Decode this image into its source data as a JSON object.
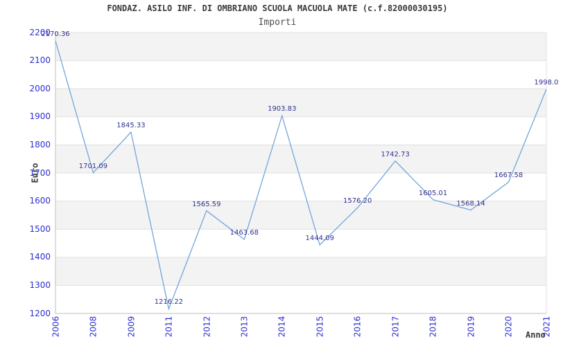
{
  "header": {
    "title": "FONDAZ. ASILO INF. DI OMBRIANO SCUOLA MACUOLA MATE (c.f.82000030195)",
    "subtitle": "Importi"
  },
  "axes": {
    "y_label": "Euro",
    "x_label": "Anno"
  },
  "chart_data": {
    "type": "line",
    "title": "FONDAZ. ASILO INF. DI OMBRIANO SCUOLA MACUOLA MATE (c.f.82000030195)",
    "subtitle": "Importi",
    "xlabel": "Anno",
    "ylabel": "Euro",
    "categories": [
      "2006",
      "2008",
      "2009",
      "2011",
      "2012",
      "2013",
      "2014",
      "2015",
      "2016",
      "2017",
      "2018",
      "2019",
      "2020",
      "2021"
    ],
    "values": [
      2170.36,
      1701.09,
      1845.33,
      1216.22,
      1565.59,
      1463.68,
      1903.83,
      1444.09,
      1576.2,
      1742.73,
      1605.01,
      1568.14,
      1667.58,
      1998.0
    ],
    "point_labels": [
      "2170.36",
      "1701.09",
      "1845.33",
      "1216.22",
      "1565.59",
      "1463.68",
      "1903.83",
      "1444.09",
      "1576.20",
      "1742.73",
      "1605.01",
      "1568.14",
      "1667.58",
      "1998.0"
    ],
    "ylim": [
      1200,
      2200
    ],
    "yticks": [
      1200,
      1300,
      1400,
      1500,
      1600,
      1700,
      1800,
      1900,
      2000,
      2100,
      2200
    ],
    "grid": "horizontal alternating bands, no vertical gridlines",
    "legend": "none",
    "band_fill_ranges": [
      [
        1300,
        1400
      ],
      [
        1500,
        1600
      ],
      [
        1700,
        1800
      ],
      [
        1900,
        2000
      ],
      [
        2100,
        2200
      ]
    ],
    "colors": {
      "line": "#74a4da",
      "point_label": "#31318f",
      "tick_label": "#2d2dd2",
      "band": "#f3f3f3",
      "grid_line": "#e0e0e0",
      "axis_line": "#bfbfbf",
      "title": "#3a3a3a",
      "subtitle": "#4d4d4d",
      "axis_title": "#3a3a3a",
      "background": "#ffffff"
    }
  }
}
